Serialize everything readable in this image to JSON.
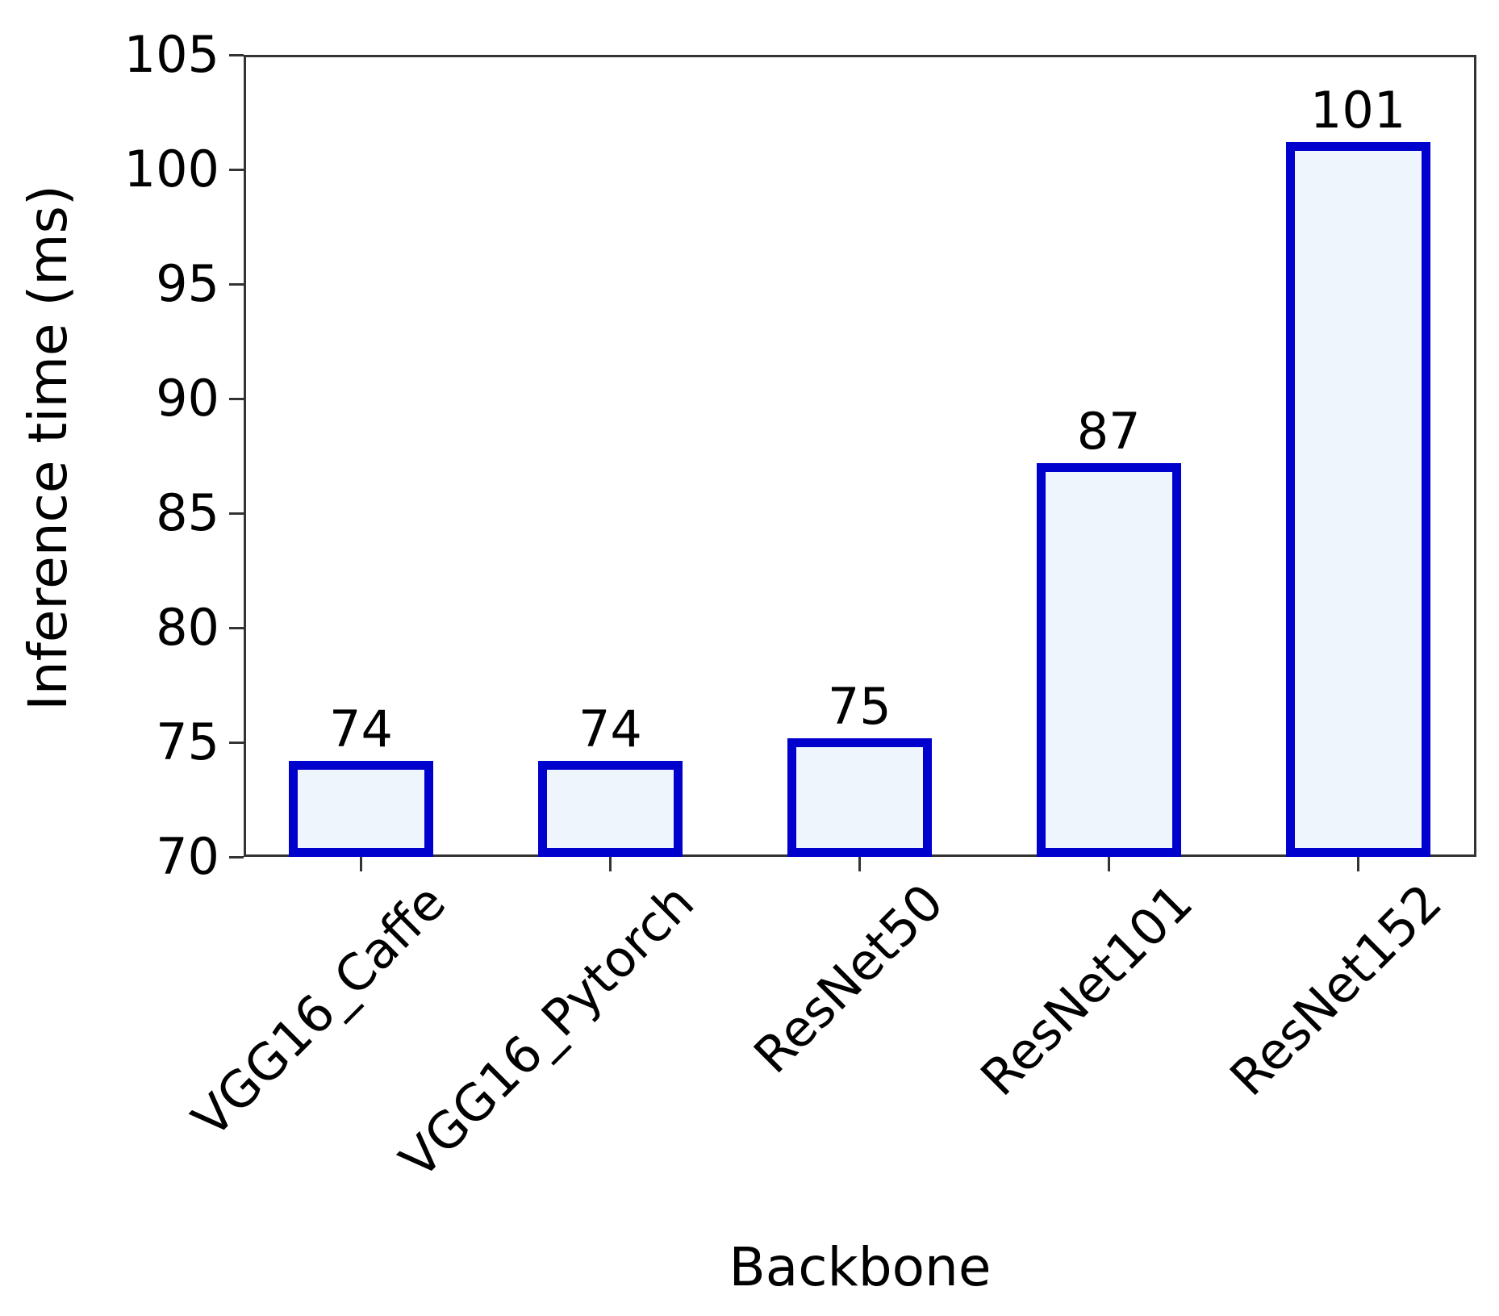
{
  "chart_data": {
    "type": "bar",
    "title": "",
    "xlabel": "Backbone",
    "ylabel": "Inference time (ms)",
    "categories": [
      "VGG16_Caffe",
      "VGG16_Pytorch",
      "ResNet50",
      "ResNet101",
      "ResNet152"
    ],
    "values": [
      74,
      74,
      75,
      87,
      101
    ],
    "bar_value_labels": [
      "74",
      "74",
      "75",
      "87",
      "101"
    ],
    "ylim": [
      70,
      105
    ],
    "yticks": [
      "70",
      "75",
      "80",
      "85",
      "90",
      "95",
      "100",
      "105"
    ],
    "grid": false,
    "legend": "none",
    "colors": {
      "bar_fill": "#EEF5FC",
      "bar_border": "#0101CD",
      "axis": "#333333",
      "text": "#000000",
      "background": "#FFFFFF"
    }
  }
}
